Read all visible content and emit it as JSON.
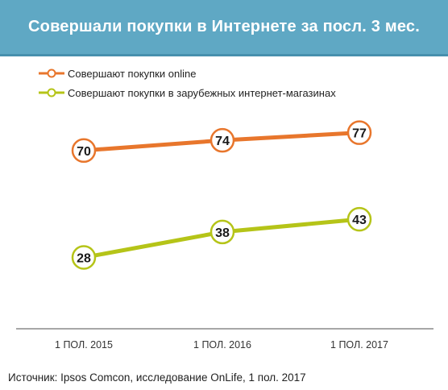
{
  "header": {
    "title": "Совершали покупки в Интернете за посл. 3 мес."
  },
  "colors": {
    "header_bg": "#5fa8c4",
    "series_online": "#e8762c",
    "series_foreign": "#b5c418"
  },
  "chart_data": {
    "type": "line",
    "title": "Совершали покупки в Интернете за посл. 3 мес.",
    "categories": [
      "1 ПОЛ. 2015",
      "1 ПОЛ. 2016",
      "1 ПОЛ. 2017"
    ],
    "series": [
      {
        "name": "Совершают покупки online",
        "values": [
          70,
          74,
          77
        ],
        "color": "#e8762c"
      },
      {
        "name": "Совершают покупки в зарубежных интернет-магазинах",
        "values": [
          28,
          38,
          43
        ],
        "color": "#b5c418"
      }
    ],
    "legend": "top-left",
    "grid": false,
    "data_labels": true
  },
  "source": {
    "text": "Источник: Ipsos Comcon, исследование OnLife, 1 пол. 2017"
  }
}
